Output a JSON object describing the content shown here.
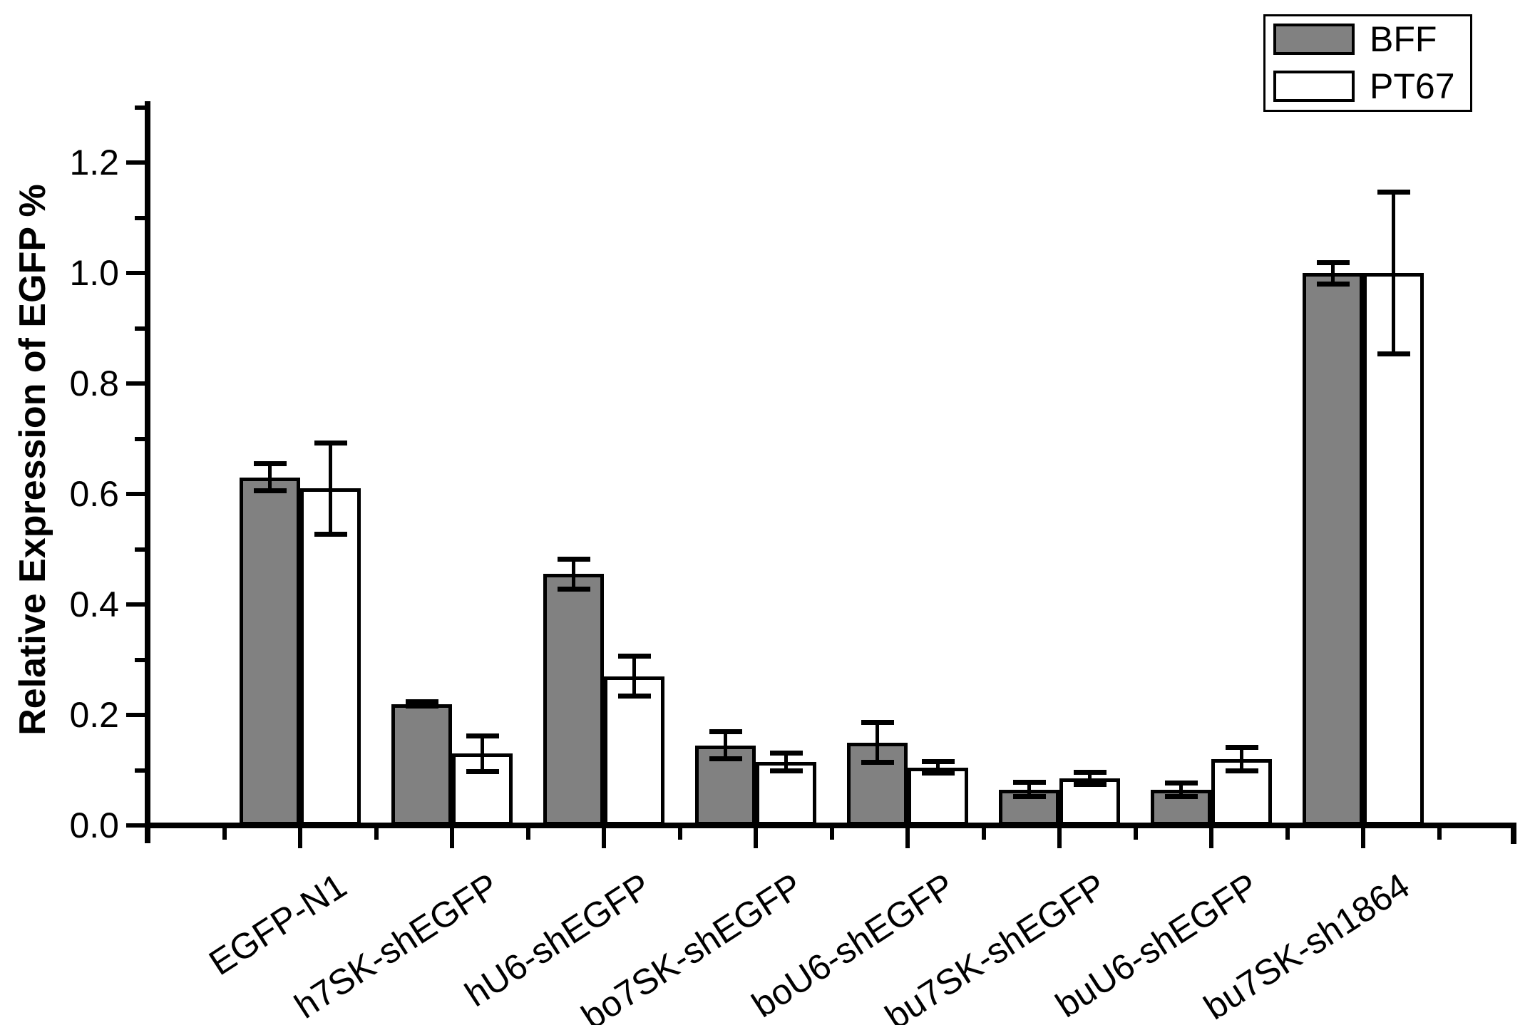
{
  "chart_data": {
    "type": "bar",
    "title": "",
    "xlabel": "",
    "ylabel": "Relative Expression of EGFP %",
    "ylim": [
      0,
      1.3
    ],
    "grid": false,
    "legend_position": "top-right",
    "categories": [
      "EGFP-N1",
      "h7SK-shEGFP",
      "hU6-shEGFP",
      "bo7SK-shEGFP",
      "boU6-shEGFP",
      "bu7SK-shEGFP",
      "buU6-shEGFP",
      "bu7SK-sh1864"
    ],
    "yticks_major": [
      0.0,
      0.2,
      0.4,
      0.6,
      0.8,
      1.0,
      1.2
    ],
    "ytick_labels": [
      "0.0",
      "0.2",
      "0.4",
      "0.6",
      "0.8",
      "1.0",
      "1.2"
    ],
    "yticks_minor": [
      0.1,
      0.3,
      0.5,
      0.7,
      0.9,
      1.1,
      1.3
    ],
    "series": [
      {
        "name": "BFF",
        "fill": "#818181",
        "values": [
          0.63,
          0.22,
          0.455,
          0.145,
          0.15,
          0.065,
          0.065,
          1.0
        ],
        "errors": [
          0.025,
          0.005,
          0.028,
          0.025,
          0.037,
          0.014,
          0.013,
          0.02
        ]
      },
      {
        "name": "PT67",
        "fill": "#ffffff",
        "values": [
          0.61,
          0.13,
          0.27,
          0.115,
          0.105,
          0.085,
          0.12,
          1.0
        ],
        "errors": [
          0.083,
          0.033,
          0.037,
          0.017,
          0.011,
          0.012,
          0.022,
          0.147
        ]
      }
    ]
  }
}
